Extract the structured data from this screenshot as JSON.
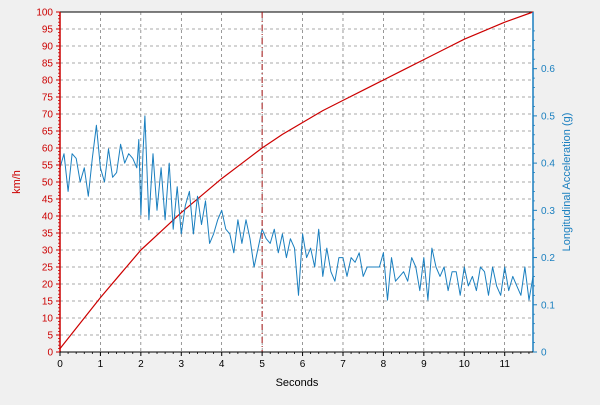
{
  "chart_data": {
    "type": "line",
    "xlabel": "Seconds",
    "x_ticks": [
      0,
      1,
      2,
      3,
      4,
      5,
      6,
      7,
      8,
      9,
      10,
      11
    ],
    "xlim": [
      0,
      11.7
    ],
    "grid": true,
    "cursor_x": 5,
    "left_axis": {
      "label": "km/h",
      "ylim": [
        0,
        100
      ],
      "ticks": [
        0,
        5,
        10,
        15,
        20,
        25,
        30,
        35,
        40,
        45,
        50,
        55,
        60,
        65,
        70,
        75,
        80,
        85,
        90,
        95,
        100
      ],
      "color": "#cc0000"
    },
    "right_axis": {
      "label": "Longitudinal Acceleration (g)",
      "ylim": [
        0,
        0.72
      ],
      "ticks": [
        0,
        0.1,
        0.2,
        0.3,
        0.4,
        0.5,
        0.6
      ],
      "tick_labels": [
        "0",
        "0.1",
        "0.2",
        "0.3",
        "0.4",
        "0.5",
        "0.6"
      ],
      "color": "#1a7fbf"
    },
    "series": [
      {
        "axis": "left",
        "color": "#cc0000",
        "x": [
          0,
          0.5,
          1,
          1.5,
          2,
          2.5,
          3,
          3.5,
          4,
          4.5,
          5,
          5.5,
          6,
          6.5,
          7,
          7.5,
          8,
          8.5,
          9,
          9.5,
          10,
          10.5,
          11,
          11.7
        ],
        "values": [
          1,
          8.5,
          16,
          23,
          30,
          35.5,
          41,
          46,
          51,
          55.5,
          60,
          64,
          67.5,
          71,
          74,
          77,
          80,
          83,
          86,
          89,
          92,
          94.5,
          97,
          100
        ]
      },
      {
        "axis": "right",
        "color": "#1a7fbf",
        "x": [
          0,
          0.1,
          0.2,
          0.3,
          0.4,
          0.5,
          0.6,
          0.7,
          0.8,
          0.9,
          1.0,
          1.1,
          1.2,
          1.3,
          1.4,
          1.5,
          1.6,
          1.7,
          1.8,
          1.9,
          1.95,
          2.0,
          2.05,
          2.1,
          2.2,
          2.3,
          2.4,
          2.5,
          2.6,
          2.7,
          2.8,
          2.9,
          3.0,
          3.1,
          3.2,
          3.3,
          3.4,
          3.5,
          3.6,
          3.7,
          3.8,
          3.9,
          4.0,
          4.1,
          4.2,
          4.3,
          4.4,
          4.5,
          4.6,
          4.7,
          4.8,
          4.9,
          5.0,
          5.1,
          5.2,
          5.3,
          5.4,
          5.5,
          5.6,
          5.7,
          5.8,
          5.9,
          6.0,
          6.1,
          6.2,
          6.3,
          6.4,
          6.5,
          6.6,
          6.7,
          6.8,
          6.9,
          7.0,
          7.1,
          7.2,
          7.3,
          7.4,
          7.5,
          7.6,
          7.7,
          7.8,
          7.9,
          8.0,
          8.1,
          8.2,
          8.3,
          8.4,
          8.5,
          8.6,
          8.7,
          8.8,
          8.9,
          9.0,
          9.1,
          9.2,
          9.3,
          9.4,
          9.5,
          9.6,
          9.7,
          9.8,
          9.9,
          10.0,
          10.1,
          10.2,
          10.3,
          10.4,
          10.5,
          10.6,
          10.7,
          10.8,
          10.9,
          11.0,
          11.1,
          11.2,
          11.3,
          11.4,
          11.5,
          11.6,
          11.7
        ],
        "values": [
          0.39,
          0.42,
          0.34,
          0.42,
          0.41,
          0.36,
          0.39,
          0.33,
          0.41,
          0.48,
          0.39,
          0.36,
          0.43,
          0.37,
          0.38,
          0.44,
          0.4,
          0.42,
          0.41,
          0.39,
          0.45,
          0.29,
          0.42,
          0.5,
          0.28,
          0.42,
          0.3,
          0.39,
          0.28,
          0.4,
          0.26,
          0.35,
          0.25,
          0.31,
          0.34,
          0.25,
          0.33,
          0.27,
          0.32,
          0.23,
          0.25,
          0.28,
          0.3,
          0.26,
          0.25,
          0.21,
          0.28,
          0.23,
          0.28,
          0.24,
          0.18,
          0.22,
          0.26,
          0.24,
          0.23,
          0.26,
          0.21,
          0.25,
          0.2,
          0.24,
          0.22,
          0.12,
          0.25,
          0.2,
          0.22,
          0.18,
          0.26,
          0.16,
          0.22,
          0.17,
          0.15,
          0.2,
          0.2,
          0.16,
          0.2,
          0.19,
          0.21,
          0.16,
          0.18,
          0.18,
          0.18,
          0.18,
          0.21,
          0.11,
          0.2,
          0.15,
          0.16,
          0.17,
          0.15,
          0.2,
          0.18,
          0.13,
          0.2,
          0.11,
          0.22,
          0.18,
          0.16,
          0.18,
          0.13,
          0.17,
          0.17,
          0.12,
          0.18,
          0.14,
          0.16,
          0.13,
          0.18,
          0.17,
          0.12,
          0.18,
          0.14,
          0.12,
          0.18,
          0.13,
          0.16,
          0.14,
          0.12,
          0.18,
          0.11,
          0.16
        ]
      }
    ]
  }
}
